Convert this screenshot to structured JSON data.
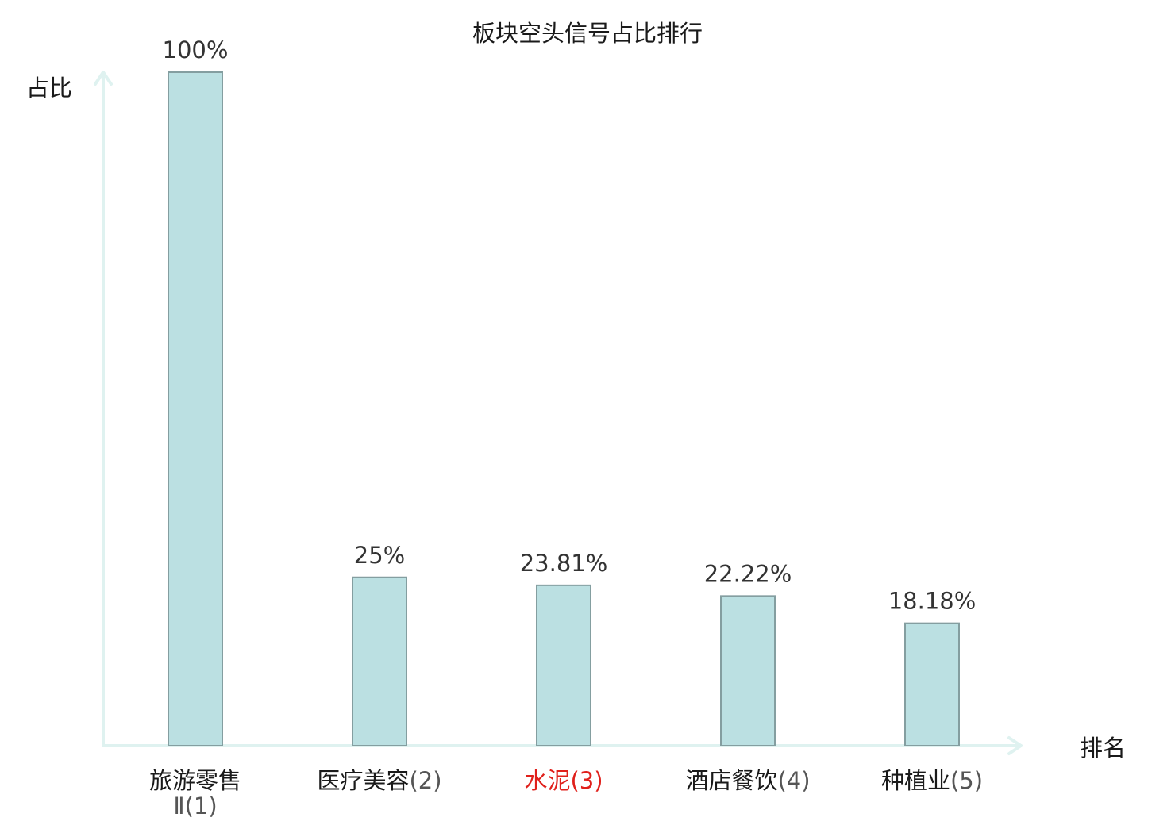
{
  "chart_data": {
    "type": "bar",
    "title": "板块空头信号占比排行",
    "ylabel": "占比",
    "xlabel": "排名",
    "categories": [
      {
        "name": "旅游零售",
        "sub": "Ⅱ",
        "rank": "(1)",
        "highlight": false
      },
      {
        "name": "医疗美容",
        "sub": "",
        "rank": "(2)",
        "highlight": false
      },
      {
        "name": "水泥",
        "sub": "",
        "rank": "(3)",
        "highlight": true
      },
      {
        "name": "酒店餐饮",
        "sub": "",
        "rank": "(4)",
        "highlight": false
      },
      {
        "name": "种植业",
        "sub": "",
        "rank": "(5)",
        "highlight": false
      }
    ],
    "values": [
      100,
      25,
      23.81,
      22.22,
      18.18
    ],
    "value_labels": [
      "100%",
      "25%",
      "23.81%",
      "22.22%",
      "18.18%"
    ],
    "ylim": [
      0,
      100
    ],
    "grid": false,
    "legend": "none"
  },
  "colors": {
    "bar_fill": "#bbe0e2",
    "bar_stroke": "#849ea0",
    "axis": "#dff2f0",
    "highlight_label": "#e0201b",
    "normal_label": "#1a1a1a",
    "value_label": "#333333",
    "rank_label": "#555555"
  }
}
